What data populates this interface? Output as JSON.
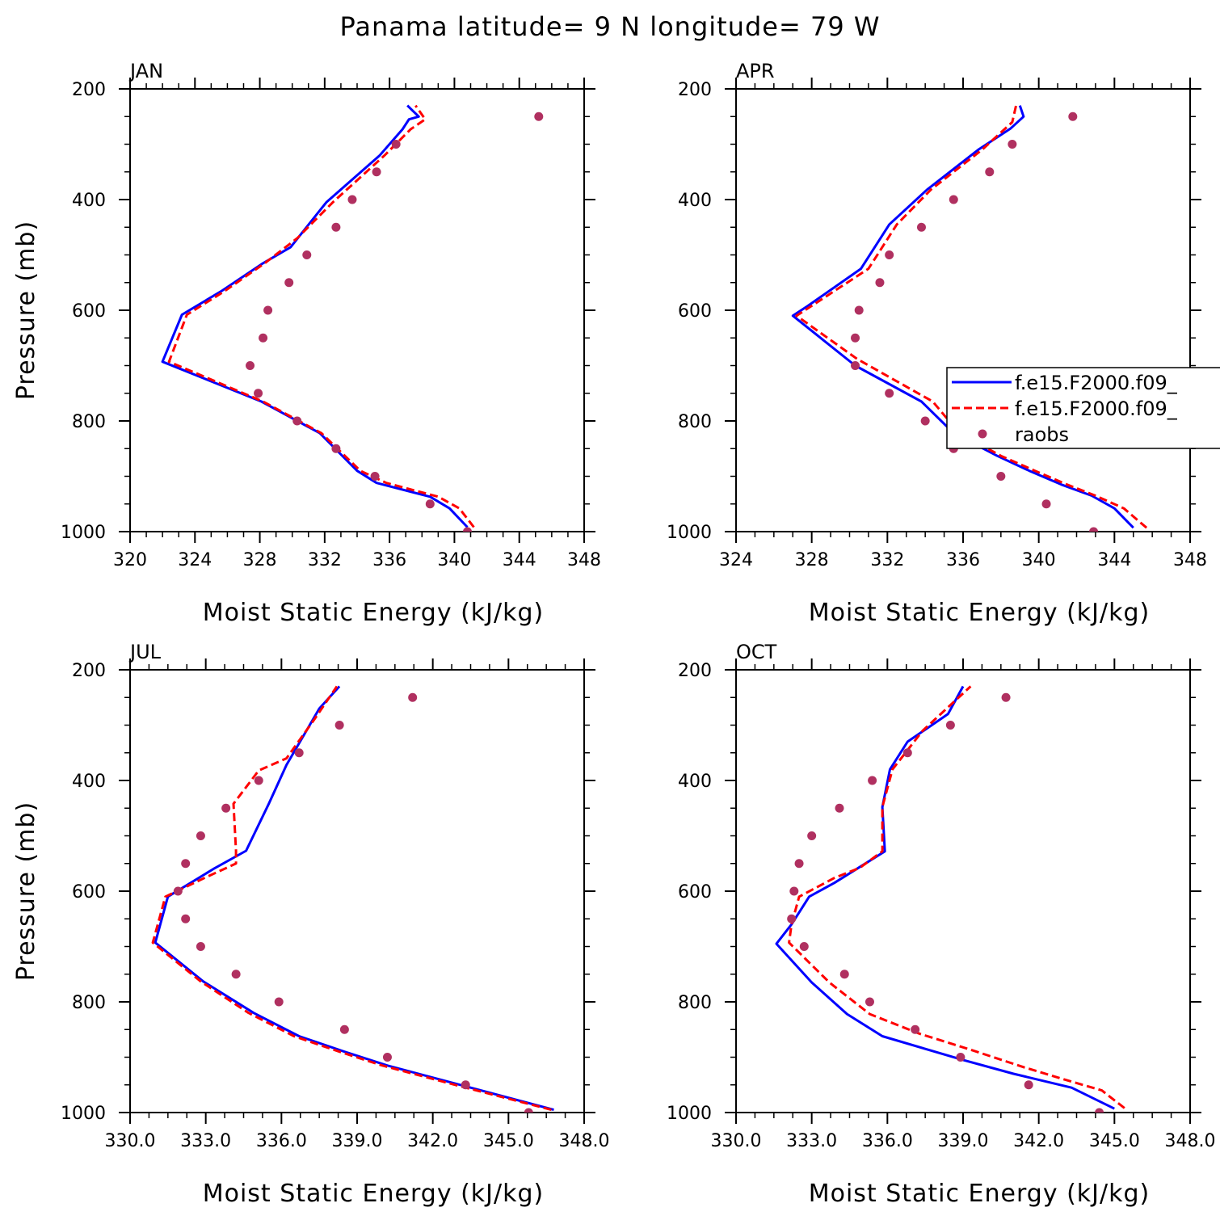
{
  "figure_title": "Panama  latitude= 9 N longitude= 79 W",
  "colors": {
    "model1": "#0000ff",
    "model2": "#ff0000",
    "raobs": "#b03060"
  },
  "legend": {
    "entries": [
      "f.e15.F2000.f09_",
      "f.e15.F2000.f09_",
      "raobs"
    ],
    "placement": "right of APR panel"
  },
  "chart_data": [
    {
      "type": "line",
      "panel": "JAN",
      "xlabel": "Moist Static Energy (kJ/kg)",
      "ylabel": "Pressure (mb)",
      "xlim": [
        320,
        348
      ],
      "xticks": [
        320,
        324,
        328,
        332,
        336,
        340,
        344,
        348
      ],
      "xtick_labels": [
        "320",
        "324",
        "328",
        "332",
        "336",
        "340",
        "344",
        "348"
      ],
      "ylim": [
        200,
        1000
      ],
      "yticks": [
        200,
        400,
        600,
        800,
        1000
      ],
      "ytick_labels": [
        "200",
        "400",
        "600",
        "800",
        "1000"
      ],
      "y_inverted": true,
      "series": [
        {
          "role": "model1",
          "style": "solid",
          "points": [
            [
              340.8,
              992
            ],
            [
              339.7,
              958
            ],
            [
              338.5,
              937
            ],
            [
              335.2,
              912
            ],
            [
              334,
              890
            ],
            [
              331.7,
              822
            ],
            [
              328.1,
              765
            ],
            [
              322,
              693
            ],
            [
              323.2,
              608
            ],
            [
              325.6,
              566
            ],
            [
              328.2,
              515
            ],
            [
              329.9,
              486
            ],
            [
              332.1,
              405
            ],
            [
              335.4,
              320
            ],
            [
              336.8,
              273
            ],
            [
              337.2,
              255
            ],
            [
              337.8,
              250
            ],
            [
              337.1,
              230
            ]
          ]
        },
        {
          "role": "model2",
          "style": "dashed",
          "points": [
            [
              341.2,
              992
            ],
            [
              340.3,
              958
            ],
            [
              339,
              937
            ],
            [
              335.8,
              912
            ],
            [
              334.2,
              890
            ],
            [
              331.8,
              822
            ],
            [
              328.2,
              765
            ],
            [
              322.4,
              693
            ],
            [
              323.5,
              608
            ],
            [
              325.8,
              566
            ],
            [
              328.3,
              515
            ],
            [
              330.3,
              470
            ],
            [
              332.5,
              405
            ],
            [
              335.7,
              320
            ],
            [
              337.3,
              273
            ],
            [
              338.2,
              255
            ],
            [
              337.6,
              230
            ]
          ]
        },
        {
          "role": "raobs",
          "style": "markers",
          "points": [
            [
              345.2,
              250
            ],
            [
              336.4,
              300
            ],
            [
              335.2,
              350
            ],
            [
              333.7,
              400
            ],
            [
              332.7,
              450
            ],
            [
              330.9,
              500
            ],
            [
              329.8,
              550
            ],
            [
              328.5,
              600
            ],
            [
              328.2,
              650
            ],
            [
              327.4,
              700
            ],
            [
              327.9,
              750
            ],
            [
              330.3,
              800
            ],
            [
              332.7,
              850
            ],
            [
              335.1,
              900
            ],
            [
              338.5,
              950
            ],
            [
              340.8,
              1000
            ]
          ]
        }
      ]
    },
    {
      "type": "line",
      "panel": "APR",
      "xlabel": "Moist Static Energy (kJ/kg)",
      "ylabel": "",
      "xlim": [
        324,
        348
      ],
      "xticks": [
        324,
        328,
        332,
        336,
        340,
        344,
        348
      ],
      "xtick_labels": [
        "324",
        "328",
        "332",
        "336",
        "340",
        "344",
        "348"
      ],
      "ylim": [
        200,
        1000
      ],
      "yticks": [
        200,
        400,
        600,
        800,
        1000
      ],
      "ytick_labels": [
        "200",
        "400",
        "600",
        "800",
        "1000"
      ],
      "y_inverted": true,
      "series": [
        {
          "role": "model1",
          "style": "solid",
          "points": [
            [
              345,
              993
            ],
            [
              344,
              958
            ],
            [
              342.8,
              935
            ],
            [
              341.2,
              915
            ],
            [
              339.5,
              890
            ],
            [
              337.8,
              863
            ],
            [
              335.5,
              822
            ],
            [
              333.8,
              765
            ],
            [
              330.3,
              700
            ],
            [
              327,
              610
            ],
            [
              327.8,
              592
            ],
            [
              330.6,
              525
            ],
            [
              332.1,
              445
            ],
            [
              334.1,
              382
            ],
            [
              336.8,
              310
            ],
            [
              338.5,
              272
            ],
            [
              339.2,
              250
            ],
            [
              339,
              230
            ]
          ]
        },
        {
          "role": "model2",
          "style": "dashed",
          "points": [
            [
              345.7,
              993
            ],
            [
              344.5,
              958
            ],
            [
              343,
              935
            ],
            [
              341.5,
              915
            ],
            [
              339.8,
              890
            ],
            [
              338,
              863
            ],
            [
              335.8,
              822
            ],
            [
              334.4,
              765
            ],
            [
              330.4,
              688
            ],
            [
              327.2,
              610
            ],
            [
              328,
              592
            ],
            [
              331,
              525
            ],
            [
              332.5,
              445
            ],
            [
              334.3,
              382
            ],
            [
              337,
              310
            ],
            [
              338.6,
              260
            ],
            [
              338.8,
              230
            ]
          ]
        },
        {
          "role": "raobs",
          "style": "markers",
          "points": [
            [
              341.8,
              250
            ],
            [
              338.6,
              300
            ],
            [
              337.4,
              350
            ],
            [
              335.5,
              400
            ],
            [
              333.8,
              450
            ],
            [
              332.1,
              500
            ],
            [
              331.6,
              550
            ],
            [
              330.5,
              600
            ],
            [
              330.3,
              650
            ],
            [
              330.3,
              700
            ],
            [
              332.1,
              750
            ],
            [
              334,
              800
            ],
            [
              335.5,
              850
            ],
            [
              338,
              900
            ],
            [
              340.4,
              950
            ],
            [
              342.9,
              1000
            ]
          ]
        }
      ]
    },
    {
      "type": "line",
      "panel": "JUL",
      "xlabel": "Moist Static Energy (kJ/kg)",
      "ylabel": "Pressure (mb)",
      "xlim": [
        330,
        348
      ],
      "xticks": [
        330,
        333,
        336,
        339,
        342,
        345,
        348
      ],
      "xtick_labels": [
        "330.0",
        "333.0",
        "336.0",
        "339.0",
        "342.0",
        "345.0",
        "348.0"
      ],
      "ylim": [
        200,
        1000
      ],
      "yticks": [
        200,
        400,
        600,
        800,
        1000
      ],
      "ytick_labels": [
        "200",
        "400",
        "600",
        "800",
        "1000"
      ],
      "y_inverted": true,
      "series": [
        {
          "role": "model1",
          "style": "solid",
          "points": [
            [
              346.8,
              995
            ],
            [
              343.5,
              955
            ],
            [
              340.2,
              915
            ],
            [
              338.5,
              890
            ],
            [
              336.7,
              862
            ],
            [
              334.9,
              820
            ],
            [
              332.9,
              763
            ],
            [
              331,
              693
            ],
            [
              331.5,
              610
            ],
            [
              333.3,
              560
            ],
            [
              334.6,
              527
            ],
            [
              335.5,
              442
            ],
            [
              336.2,
              372
            ],
            [
              337.5,
              270
            ],
            [
              338.3,
              230
            ]
          ]
        },
        {
          "role": "model2",
          "style": "dashed",
          "points": [
            [
              346.7,
              995
            ],
            [
              343.3,
              955
            ],
            [
              340,
              915
            ],
            [
              338.3,
              890
            ],
            [
              336.5,
              862
            ],
            [
              334.7,
              820
            ],
            [
              332.8,
              763
            ],
            [
              330.9,
              693
            ],
            [
              331.4,
              610
            ],
            [
              333,
              575
            ],
            [
              334.2,
              550
            ],
            [
              334.2,
              527
            ],
            [
              334.1,
              442
            ],
            [
              335.1,
              382
            ],
            [
              336.2,
              360
            ],
            [
              337.3,
              290
            ],
            [
              338.2,
              230
            ]
          ]
        },
        {
          "role": "raobs",
          "style": "markers",
          "points": [
            [
              341.2,
              250
            ],
            [
              338.3,
              300
            ],
            [
              336.7,
              350
            ],
            [
              335.1,
              400
            ],
            [
              333.8,
              450
            ],
            [
              332.8,
              500
            ],
            [
              332.2,
              550
            ],
            [
              331.9,
              600
            ],
            [
              332.2,
              650
            ],
            [
              332.8,
              700
            ],
            [
              334.2,
              750
            ],
            [
              335.9,
              800
            ],
            [
              338.5,
              850
            ],
            [
              340.2,
              900
            ],
            [
              343.3,
              950
            ],
            [
              345.8,
              1000
            ]
          ]
        }
      ]
    },
    {
      "type": "line",
      "panel": "OCT",
      "xlabel": "Moist Static Energy (kJ/kg)",
      "ylabel": "",
      "xlim": [
        330,
        348
      ],
      "xticks": [
        330,
        333,
        336,
        339,
        342,
        345,
        348
      ],
      "xtick_labels": [
        "330.0",
        "333.0",
        "336.0",
        "339.0",
        "342.0",
        "345.0",
        "348.0"
      ],
      "ylim": [
        200,
        1000
      ],
      "yticks": [
        200,
        400,
        600,
        800,
        1000
      ],
      "ytick_labels": [
        "200",
        "400",
        "600",
        "800",
        "1000"
      ],
      "y_inverted": true,
      "series": [
        {
          "role": "model1",
          "style": "solid",
          "points": [
            [
              345,
              993
            ],
            [
              343.3,
              955
            ],
            [
              341,
              930
            ],
            [
              339,
              905
            ],
            [
              337.5,
              885
            ],
            [
              335.8,
              862
            ],
            [
              334.4,
              822
            ],
            [
              333,
              765
            ],
            [
              331.6,
              695
            ],
            [
              332.2,
              660
            ],
            [
              332.9,
              610
            ],
            [
              333.9,
              585
            ],
            [
              335.9,
              528
            ],
            [
              335.8,
              448
            ],
            [
              336.1,
              380
            ],
            [
              336.8,
              330
            ],
            [
              338.4,
              280
            ],
            [
              339,
              230
            ]
          ]
        },
        {
          "role": "model2",
          "style": "dashed",
          "points": [
            [
              345.4,
              992
            ],
            [
              344.5,
              960
            ],
            [
              343,
              940
            ],
            [
              341.4,
              918
            ],
            [
              339.2,
              885
            ],
            [
              337.3,
              858
            ],
            [
              335.3,
              822
            ],
            [
              333.7,
              765
            ],
            [
              332.1,
              693
            ],
            [
              332.2,
              660
            ],
            [
              332.5,
              610
            ],
            [
              333.9,
              576
            ],
            [
              334.9,
              558
            ],
            [
              335.8,
              528
            ],
            [
              335.8,
              448
            ],
            [
              336.2,
              380
            ],
            [
              337.4,
              310
            ],
            [
              339.3,
              230
            ]
          ]
        },
        {
          "role": "raobs",
          "style": "markers",
          "points": [
            [
              340.7,
              250
            ],
            [
              338.5,
              300
            ],
            [
              336.8,
              350
            ],
            [
              335.4,
              400
            ],
            [
              334.1,
              450
            ],
            [
              333,
              500
            ],
            [
              332.5,
              550
            ],
            [
              332.3,
              600
            ],
            [
              332.2,
              650
            ],
            [
              332.7,
              700
            ],
            [
              334.3,
              750
            ],
            [
              335.3,
              800
            ],
            [
              337.1,
              850
            ],
            [
              338.9,
              900
            ],
            [
              341.6,
              950
            ],
            [
              344.4,
              1000
            ]
          ]
        }
      ]
    }
  ]
}
